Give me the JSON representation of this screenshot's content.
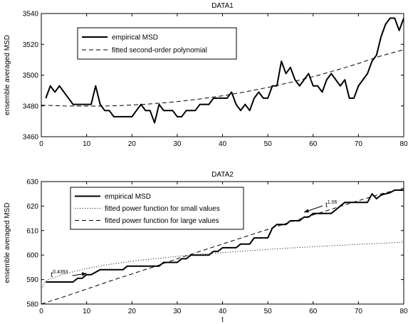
{
  "chart_data": [
    {
      "type": "line",
      "title": "DATA1",
      "xlabel": "",
      "ylabel": "ensemble averaged MSD",
      "xlim": [
        0,
        80
      ],
      "ylim": [
        3460,
        3540
      ],
      "xticks": [
        0,
        10,
        20,
        30,
        40,
        50,
        60,
        70,
        80
      ],
      "yticks": [
        3460,
        3480,
        3500,
        3520,
        3540
      ],
      "grid": false,
      "legend": {
        "placement": "top-left"
      },
      "series": [
        {
          "name": "empirical MSD",
          "style": "solid",
          "x": [
            1,
            2,
            3,
            4,
            5,
            6,
            7,
            8,
            9,
            10,
            11,
            12,
            13,
            14,
            15,
            16,
            17,
            18,
            19,
            20,
            21,
            22,
            23,
            24,
            25,
            26,
            27,
            28,
            29,
            30,
            31,
            32,
            33,
            34,
            35,
            36,
            37,
            38,
            39,
            40,
            41,
            42,
            43,
            44,
            45,
            46,
            47,
            48,
            49,
            50,
            51,
            52,
            53,
            54,
            55,
            56,
            57,
            58,
            59,
            60,
            61,
            62,
            63,
            64,
            65,
            66,
            67,
            68,
            69,
            70,
            71,
            72,
            73,
            74,
            75,
            76,
            77,
            78,
            79,
            80
          ],
          "y": [
            3485,
            3493,
            3489,
            3493,
            3489,
            3485,
            3481,
            3481,
            3481,
            3481,
            3481,
            3493,
            3481,
            3477,
            3477,
            3473,
            3473,
            3473,
            3473,
            3473,
            3477,
            3481,
            3477,
            3477,
            3469,
            3481,
            3477,
            3477,
            3477,
            3473,
            3473,
            3477,
            3477,
            3477,
            3481,
            3481,
            3481,
            3485,
            3485,
            3485,
            3485,
            3489,
            3481,
            3477,
            3481,
            3477,
            3485,
            3489,
            3485,
            3485,
            3493,
            3493,
            3509,
            3501,
            3505,
            3497,
            3493,
            3497,
            3501,
            3493,
            3493,
            3489,
            3497,
            3501,
            3497,
            3493,
            3497,
            3485,
            3485,
            3493,
            3497,
            3501,
            3509,
            3513,
            3525,
            3533,
            3537,
            3537,
            3529,
            3537
          ]
        },
        {
          "name": "fitted second-order polynomial",
          "style": "dashed",
          "x": [
            0,
            5,
            10,
            15,
            20,
            25,
            30,
            35,
            40,
            45,
            50,
            55,
            60,
            65,
            70,
            75,
            80
          ],
          "y": [
            3480.5,
            3480.0,
            3479.9,
            3480.0,
            3480.6,
            3481.5,
            3482.8,
            3484.5,
            3486.6,
            3489.1,
            3492.0,
            3495.3,
            3499.0,
            3503.1,
            3507.6,
            3512.5,
            3516.5
          ]
        }
      ]
    },
    {
      "type": "line",
      "title": "DATA2",
      "xlabel": "t",
      "ylabel": "ensemble averaged MSD",
      "xlim": [
        0,
        80
      ],
      "ylim": [
        580,
        630
      ],
      "xticks": [
        0,
        10,
        20,
        30,
        40,
        50,
        60,
        70,
        80
      ],
      "yticks": [
        580,
        590,
        600,
        610,
        620,
        630
      ],
      "grid": false,
      "legend": {
        "placement": "top-left"
      },
      "annotations": [
        {
          "base": "t",
          "exponent": "0.4393",
          "x": 4,
          "y": 591,
          "arrow_to": [
            10,
            592.5
          ]
        },
        {
          "base": "t",
          "exponent": "1.06",
          "x": 64,
          "y": 619.5,
          "arrow_to": [
            58,
            617.5
          ]
        }
      ],
      "series": [
        {
          "name": "empirical MSD",
          "style": "solid",
          "x": [
            1,
            2,
            3,
            4,
            5,
            6,
            7,
            8,
            9,
            10,
            11,
            12,
            13,
            14,
            15,
            16,
            17,
            18,
            19,
            20,
            21,
            22,
            23,
            24,
            25,
            26,
            27,
            28,
            29,
            30,
            31,
            32,
            33,
            34,
            35,
            36,
            37,
            38,
            39,
            40,
            41,
            42,
            43,
            44,
            45,
            46,
            47,
            48,
            49,
            50,
            51,
            52,
            53,
            54,
            55,
            56,
            57,
            58,
            59,
            60,
            61,
            62,
            63,
            64,
            65,
            66,
            67,
            68,
            69,
            70,
            71,
            72,
            73,
            74,
            75,
            76,
            77,
            78,
            79,
            80
          ],
          "y": [
            589,
            589,
            589,
            589,
            589,
            589,
            589,
            590.5,
            590.5,
            592,
            592,
            593,
            594,
            594,
            594,
            594,
            594,
            594,
            595.5,
            595.5,
            595.5,
            595.5,
            595.5,
            595.5,
            595.5,
            595.5,
            597,
            597,
            597,
            597,
            598.5,
            598.5,
            600,
            600,
            600,
            600,
            600,
            601.5,
            601.5,
            603,
            603,
            603,
            603,
            604.5,
            604.5,
            604.5,
            607,
            607,
            607,
            607,
            611,
            612.5,
            612.5,
            612.5,
            614,
            614,
            614,
            615.5,
            615.5,
            617,
            617,
            617,
            617,
            617,
            618.5,
            620,
            621.5,
            621.5,
            621.5,
            621.5,
            621.5,
            621.5,
            625,
            623,
            624.5,
            625,
            625.5,
            626.5,
            626.5,
            626.5
          ]
        },
        {
          "name": "fitted power function for small values",
          "style": "dotted",
          "x": [
            0,
            1,
            2,
            3,
            5,
            7,
            10,
            15,
            20,
            25,
            30,
            35,
            40,
            45,
            50,
            55,
            60,
            65,
            70,
            75,
            80
          ],
          "y": [
            586,
            589.6,
            590.4,
            591.0,
            592.2,
            593.2,
            594.5,
            596.2,
            597.5,
            598.5,
            599.5,
            600.3,
            601.0,
            601.7,
            602.3,
            602.9,
            603.4,
            603.9,
            604.4,
            604.8,
            605.3
          ]
        },
        {
          "name": "fitted power function for large values",
          "style": "dashed",
          "x": [
            0,
            5,
            10,
            15,
            20,
            25,
            30,
            35,
            40,
            45,
            50,
            55,
            60,
            65,
            70,
            75,
            80
          ],
          "y": [
            580,
            583.0,
            586.1,
            589.3,
            592.3,
            595.3,
            598.5,
            601.5,
            604.5,
            607.5,
            610.5,
            613.5,
            616.4,
            619.3,
            622.2,
            625.0,
            627.3
          ]
        }
      ]
    }
  ]
}
